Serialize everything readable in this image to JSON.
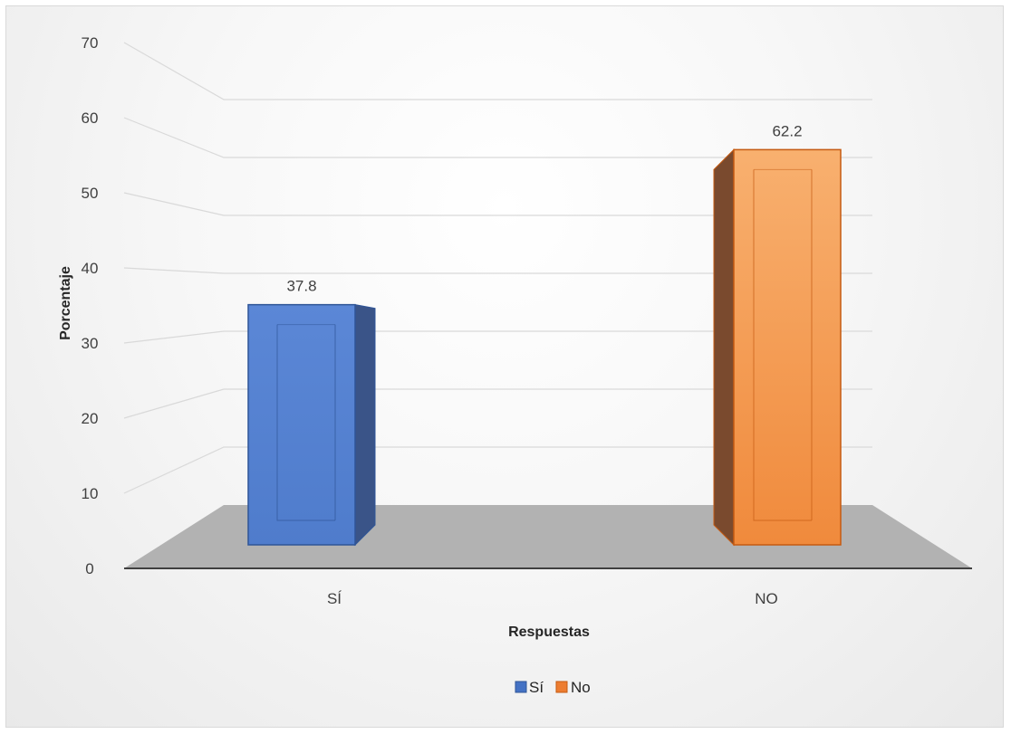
{
  "chart_data": {
    "type": "bar",
    "style": "3d-column",
    "categories": [
      "SÍ",
      "NO"
    ],
    "values": [
      37.8,
      62.2
    ],
    "series": [
      {
        "name": "Sí",
        "values": [
          37.8,
          null
        ],
        "color": "#4472c4"
      },
      {
        "name": "No",
        "values": [
          null,
          62.2
        ],
        "color": "#ed7d31"
      }
    ],
    "data_labels": [
      "37.8",
      "62.2"
    ],
    "title": "",
    "xlabel": "Respuestas",
    "ylabel": "Porcentaje",
    "ylim": [
      0,
      70
    ],
    "yticks": [
      "0",
      "10",
      "20",
      "30",
      "40",
      "50",
      "60",
      "70"
    ],
    "grid": true,
    "legend": {
      "position": "bottom",
      "entries": [
        "Sí",
        "No"
      ]
    }
  }
}
